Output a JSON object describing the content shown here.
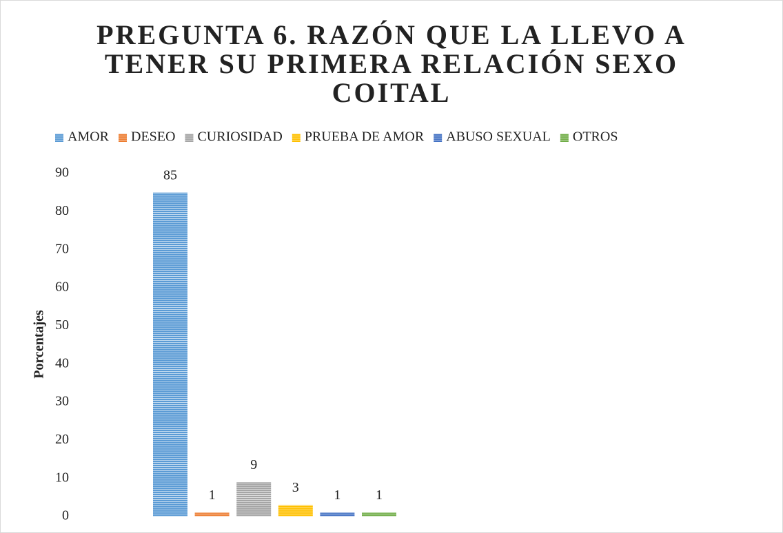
{
  "chart_data": {
    "type": "bar",
    "title": "PREGUNTA 6. RAZÓN QUE LA LLEVO A TENER SU PRIMERA RELACIÓN SEXO COITAL",
    "y_label": "Porcentajes",
    "categories": [
      null
    ],
    "series": [
      {
        "name": "AMOR",
        "color": "#5b9bd5",
        "values": [
          85
        ]
      },
      {
        "name": "DESEO",
        "color": "#ed7d31",
        "values": [
          1
        ]
      },
      {
        "name": "CURIOSIDAD",
        "color": "#a5a5a5",
        "values": [
          9
        ]
      },
      {
        "name": "PRUEBA DE AMOR",
        "color": "#ffc000",
        "values": [
          3
        ]
      },
      {
        "name": "ABUSO SEXUAL",
        "color": "#4472c4",
        "values": [
          1
        ]
      },
      {
        "name": "OTROS",
        "color": "#70ad47",
        "values": [
          1
        ]
      }
    ],
    "ylim": [
      0,
      90
    ],
    "yticks": [
      0,
      10,
      20,
      30,
      40,
      50,
      60,
      70,
      80,
      90
    ],
    "grid": false,
    "legend": "top",
    "data_labels": true
  }
}
